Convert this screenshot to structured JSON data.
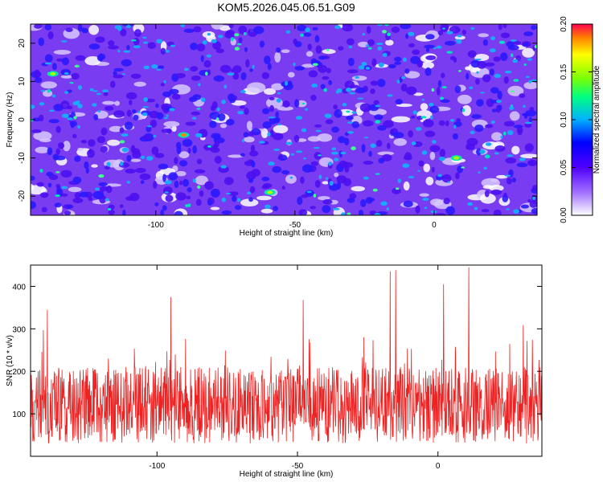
{
  "title": "KOM5.2026.045.06.51.G09",
  "chart_data": [
    {
      "type": "heatmap",
      "xlabel": "Height of straight line (km)",
      "ylabel": "Frequency (Hz)",
      "xlim": [
        -145,
        37
      ],
      "ylim": [
        -25,
        25
      ],
      "xticks": [
        -100,
        -50,
        0
      ],
      "yticks": [
        -20,
        -10,
        0,
        10,
        20
      ],
      "colorbar": {
        "label": "Normalized spectral amplitude",
        "range": [
          0,
          0.2
        ],
        "ticks": [
          "0.00",
          "0.05",
          "0.10",
          "0.15",
          "0.20"
        ]
      },
      "description_values": {
        "background_level": 0.05,
        "peaks": [
          {
            "x": -90,
            "y": -4,
            "value": 0.2
          },
          {
            "x": 8,
            "y": -10,
            "value": 0.13
          },
          {
            "x": -137,
            "y": 12,
            "value": 0.12
          },
          {
            "x": -59,
            "y": -19,
            "value": 0.11
          }
        ]
      }
    },
    {
      "type": "line",
      "xlabel": "Height of straight line (km)",
      "ylabel": "SNR (10 * v/v)",
      "xlim": [
        -145,
        37
      ],
      "ylim": [
        0,
        450
      ],
      "xticks": [
        -100,
        -50,
        0
      ],
      "yticks": [
        100,
        200,
        300,
        400
      ],
      "series": [
        {
          "color": "#ee2222",
          "mean": 120,
          "peaks": [
            {
              "x": 11,
              "y": 445
            },
            {
              "x": -15,
              "y": 438
            },
            {
              "x": -17,
              "y": 435
            },
            {
              "x": 2,
              "y": 405
            },
            {
              "x": -95,
              "y": 375
            },
            {
              "x": -48,
              "y": 368
            },
            {
              "x": -139,
              "y": 345
            }
          ]
        }
      ]
    }
  ]
}
